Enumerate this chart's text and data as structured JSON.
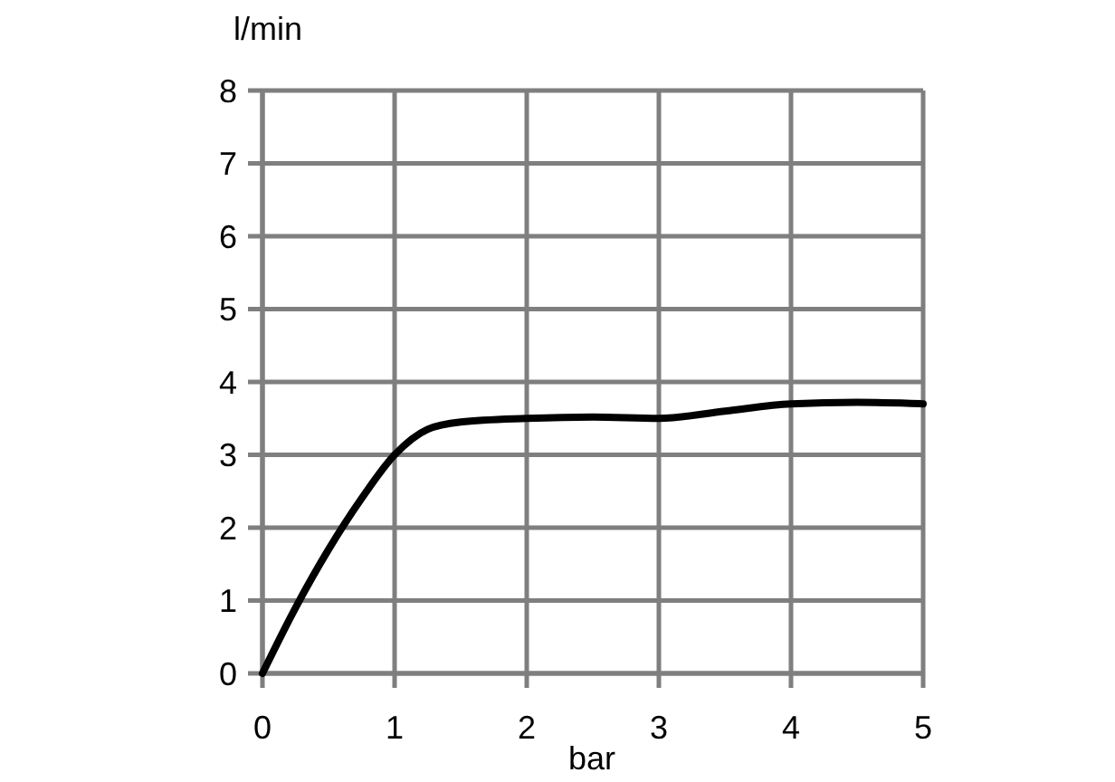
{
  "chart_data": {
    "type": "line",
    "xlabel": "bar",
    "ylabel": "l/min",
    "x": [
      0,
      0.25,
      0.5,
      0.75,
      1,
      1.25,
      1.5,
      2,
      2.5,
      3,
      3.5,
      4,
      4.5,
      5
    ],
    "series": [
      {
        "color": "#000000",
        "values": [
          0,
          0.9,
          1.7,
          2.4,
          3,
          3.35,
          3.45,
          3.5,
          3.52,
          3.5,
          3.6,
          3.7,
          3.72,
          3.7
        ]
      }
    ],
    "xlim": [
      0,
      5
    ],
    "xticks": [
      0,
      1,
      2,
      3,
      4,
      5
    ],
    "ylim": [
      0,
      8
    ],
    "yticks": [
      0,
      1,
      2,
      3,
      4,
      5,
      6,
      7,
      8
    ],
    "grid": true,
    "marker": "none",
    "line_style": "solid"
  }
}
